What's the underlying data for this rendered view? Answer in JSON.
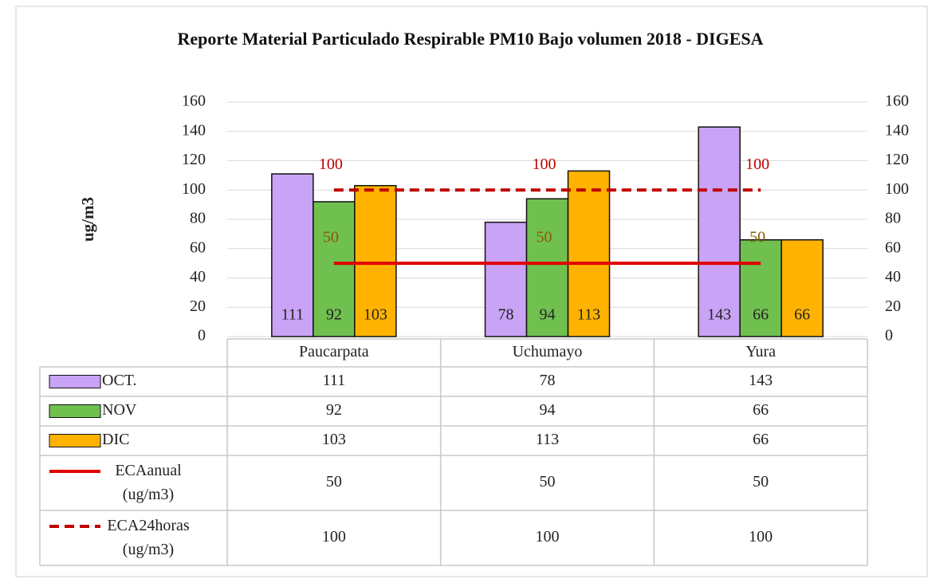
{
  "chart_data": {
    "type": "bar",
    "title": "Reporte Material Particulado  Respirable PM10 Bajo volumen  2018 - DIGESA",
    "y_label": "ug/m3",
    "categories": [
      "Paucarpata",
      "Uchumayo",
      "Yura"
    ],
    "series": [
      {
        "name": "OCT.",
        "type": "bar",
        "color": "#c9a3f5",
        "values": [
          111,
          78,
          143
        ]
      },
      {
        "name": "NOV",
        "type": "bar",
        "color": "#70c050",
        "values": [
          92,
          94,
          66
        ]
      },
      {
        "name": "DIC",
        "type": "bar",
        "color": "#ffb300",
        "values": [
          103,
          113,
          66
        ]
      },
      {
        "name": "ECAanual (ug/m3)",
        "type": "line",
        "line_style": "solid",
        "color": "#e00000",
        "label_color": "#8b5a00",
        "values": [
          50,
          50,
          50
        ]
      },
      {
        "name": "ECA24horas (ug/m3)",
        "type": "line",
        "line_style": "dashed",
        "color": "#c00000",
        "label_color": "#c00000",
        "values": [
          100,
          100,
          100
        ]
      }
    ],
    "ylim": [
      0,
      160
    ],
    "yticks": [
      0,
      20,
      40,
      60,
      80,
      100,
      120,
      140,
      160
    ],
    "y2lim": [
      0,
      160
    ],
    "y2ticks": [
      0,
      20,
      40,
      60,
      80,
      100,
      120,
      140,
      160
    ],
    "grid": true,
    "data_table": true
  }
}
